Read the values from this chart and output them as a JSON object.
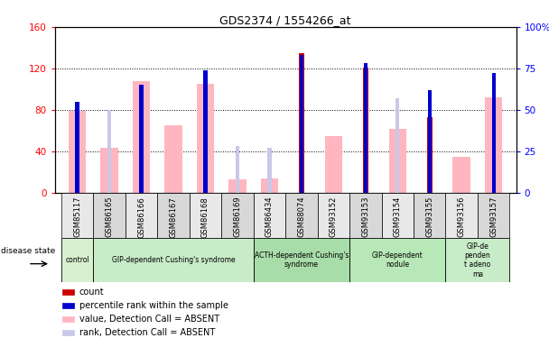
{
  "title": "GDS2374 / 1554266_at",
  "samples": [
    "GSM85117",
    "GSM86165",
    "GSM86166",
    "GSM86167",
    "GSM86168",
    "GSM86169",
    "GSM86434",
    "GSM88074",
    "GSM93152",
    "GSM93153",
    "GSM93154",
    "GSM93155",
    "GSM93156",
    "GSM93157"
  ],
  "pink_values": [
    79,
    43,
    108,
    65,
    105,
    13,
    14,
    0,
    55,
    0,
    62,
    0,
    35,
    92
  ],
  "red_counts": [
    0,
    0,
    0,
    0,
    0,
    0,
    0,
    135,
    0,
    121,
    0,
    73,
    0,
    0
  ],
  "blue_ranks": [
    55,
    0,
    65,
    0,
    74,
    0,
    0,
    83,
    0,
    78,
    0,
    62,
    0,
    72
  ],
  "lavender_ranks": [
    0,
    50,
    0,
    0,
    0,
    28,
    27,
    0,
    0,
    0,
    57,
    0,
    0,
    0
  ],
  "ylim_left": [
    0,
    160
  ],
  "ylim_right": [
    0,
    100
  ],
  "yticks_left": [
    0,
    40,
    80,
    120,
    160
  ],
  "ytick_labels_left": [
    "0",
    "40",
    "80",
    "120",
    "160"
  ],
  "yticks_right": [
    0,
    25,
    50,
    75,
    100
  ],
  "ytick_labels_right": [
    "0",
    "25",
    "50",
    "75",
    "100%"
  ],
  "disease_groups": [
    {
      "label": "control",
      "start": 0,
      "end": 1
    },
    {
      "label": "GIP-dependent Cushing's syndrome",
      "start": 1,
      "end": 6
    },
    {
      "label": "ACTH-dependent Cushing's\nsyndrome",
      "start": 6,
      "end": 9
    },
    {
      "label": "GIP-dependent\nnodule",
      "start": 9,
      "end": 12
    },
    {
      "label": "GIP-de\npenden\nt adeno\nma",
      "start": 12,
      "end": 14
    }
  ],
  "group_colors": [
    "#d8f0d0",
    "#c8ecc8",
    "#a8dca8",
    "#b8e8b8",
    "#c8ecc8"
  ],
  "legend_items": [
    {
      "label": "count",
      "color": "#cc0000"
    },
    {
      "label": "percentile rank within the sample",
      "color": "#0000cc"
    },
    {
      "label": "value, Detection Call = ABSENT",
      "color": "#ffb6c1"
    },
    {
      "label": "rank, Detection Call = ABSENT",
      "color": "#c8c8e8"
    }
  ],
  "pink_color": "#ffb6c1",
  "red_color": "#cc0000",
  "blue_color": "#0000cc",
  "lavender_color": "#c8c8e8",
  "plot_bg_color": "#ffffff"
}
